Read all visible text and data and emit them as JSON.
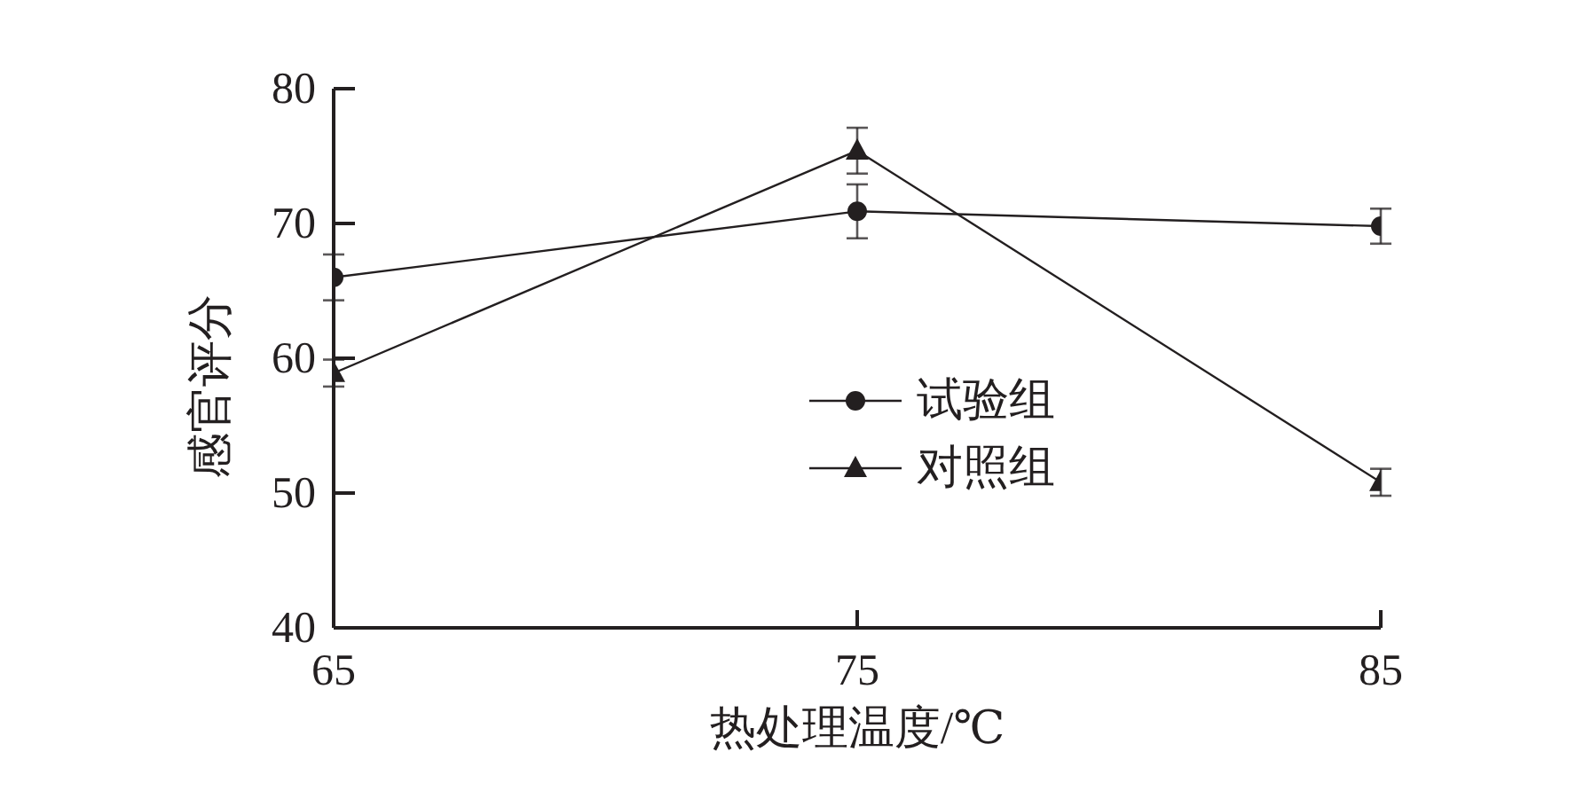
{
  "chart_data": {
    "type": "line",
    "xlabel": "热处理温度/℃",
    "ylabel": "感官评分",
    "x": [
      65,
      75,
      85
    ],
    "xlim": [
      65,
      85
    ],
    "xticks": [
      65,
      75,
      85
    ],
    "ylim": [
      40,
      80
    ],
    "yticks": [
      40,
      50,
      60,
      70,
      80
    ],
    "legend": "center",
    "line_style": "solid",
    "series": [
      {
        "name": "试验组",
        "color": "#231f20",
        "marker": "circle",
        "values": [
          66.0,
          70.9,
          69.8
        ],
        "errors": [
          1.7,
          2.0,
          1.3
        ]
      },
      {
        "name": "对照组",
        "color": "#231f20",
        "marker": "triangle",
        "values": [
          58.9,
          75.4,
          50.8
        ],
        "errors": [
          1.0,
          1.7,
          1.0
        ]
      }
    ]
  }
}
